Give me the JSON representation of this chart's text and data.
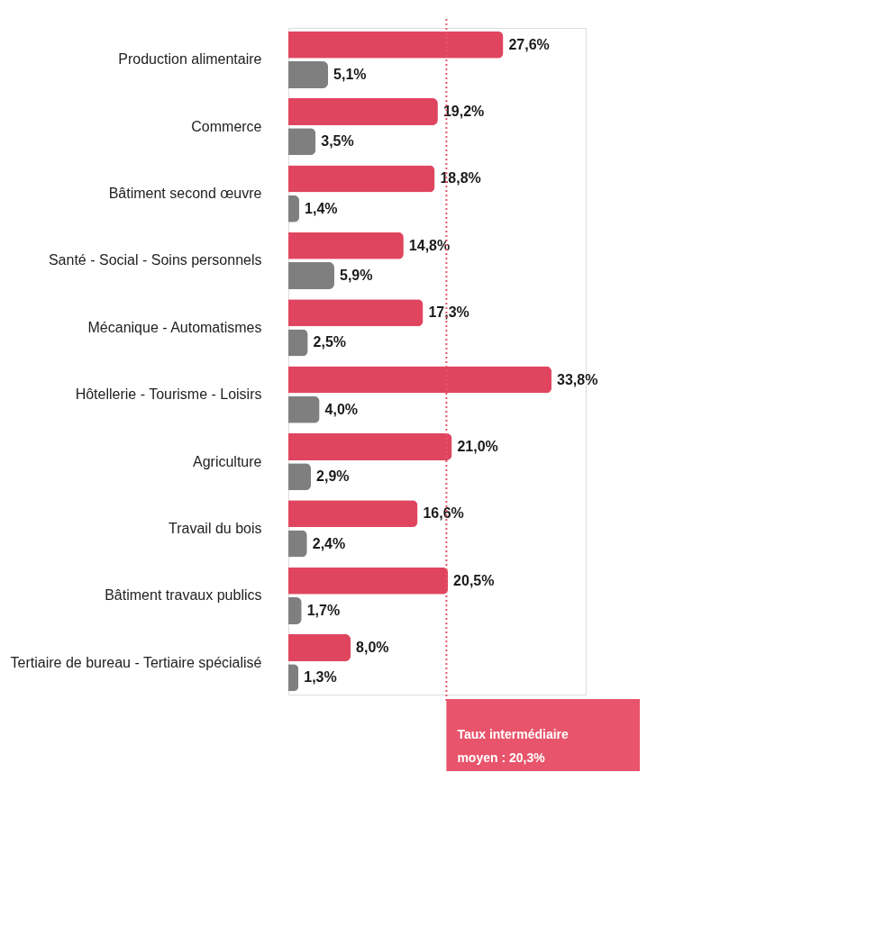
{
  "chart_data": {
    "type": "bar",
    "orientation": "horizontal",
    "categories": [
      "Production alimentaire",
      "Commerce",
      "Bâtiment second œuvre",
      "Santé - Social - Soins personnels",
      "Mécanique - Automatismes",
      "Hôtellerie - Tourisme - Loisirs",
      "Agriculture",
      "Travail du bois",
      "Bâtiment travaux publics",
      "Tertiaire de bureau - Tertiaire spécialisé"
    ],
    "series": [
      {
        "color": "#e0455f",
        "values": [
          27.6,
          19.2,
          18.8,
          14.8,
          17.3,
          33.8,
          21.0,
          16.6,
          20.5,
          8.0
        ],
        "value_labels": [
          "27,6%",
          "19,2%",
          "18,8%",
          "14,8%",
          "17,3%",
          "33,8%",
          "21,0%",
          "16,6%",
          "20,5%",
          "8,0%"
        ]
      },
      {
        "color": "#7f7f7f",
        "values": [
          5.1,
          3.5,
          1.4,
          5.9,
          2.5,
          4.0,
          2.9,
          2.4,
          1.7,
          1.3
        ],
        "value_labels": [
          "5,1%",
          "3,5%",
          "1,4%",
          "5,9%",
          "2,5%",
          "4,0%",
          "2,9%",
          "2,4%",
          "1,7%",
          "1,3%"
        ]
      }
    ],
    "ref_lines": [
      {
        "axis": "x",
        "value": 20.3,
        "label": "Taux intermédiaire moyen : 20,3%",
        "color": "#e8546b",
        "line_style": "dotted"
      }
    ]
  }
}
